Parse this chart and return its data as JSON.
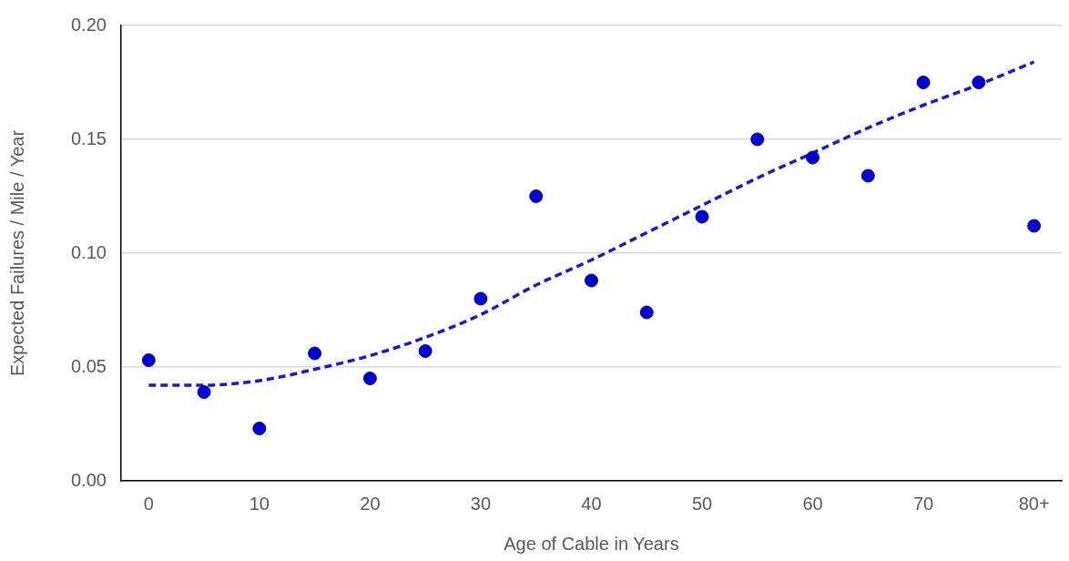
{
  "chart_data": {
    "type": "scatter",
    "xlabel": "Age of Cable in Years",
    "ylabel": "Expected Failures / Mile / Year",
    "categories": [
      "0",
      null,
      "10",
      null,
      "20",
      null,
      "30",
      null,
      "40",
      null,
      "50",
      null,
      "60",
      null,
      "70",
      null,
      "80+"
    ],
    "series": [
      {
        "color": "#0000cc",
        "marker": "circle",
        "values": [
          0.053,
          0.039,
          0.023,
          0.056,
          0.045,
          0.057,
          0.08,
          0.125,
          0.088,
          0.074,
          0.116,
          0.15,
          0.142,
          0.134,
          0.175,
          0.175,
          0.112
        ]
      },
      {
        "type": "line",
        "color": "#1a1acc",
        "line_style": "dashed",
        "marker": "none",
        "values": [
          0.042,
          0.042,
          0.044,
          0.049,
          0.055,
          0.063,
          0.073,
          0.086,
          0.097,
          0.109,
          0.121,
          0.133,
          0.144,
          0.155,
          0.165,
          0.174,
          0.184
        ]
      }
    ],
    "ylim": [
      0,
      0.2
    ],
    "yticks": [
      {
        "value": 0,
        "label": "0.00"
      },
      0.05,
      {
        "value": 0.1,
        "label": "0.10"
      },
      0.15,
      {
        "value": 0.2,
        "label": "0.20"
      }
    ],
    "grid": "y",
    "legend": false
  }
}
